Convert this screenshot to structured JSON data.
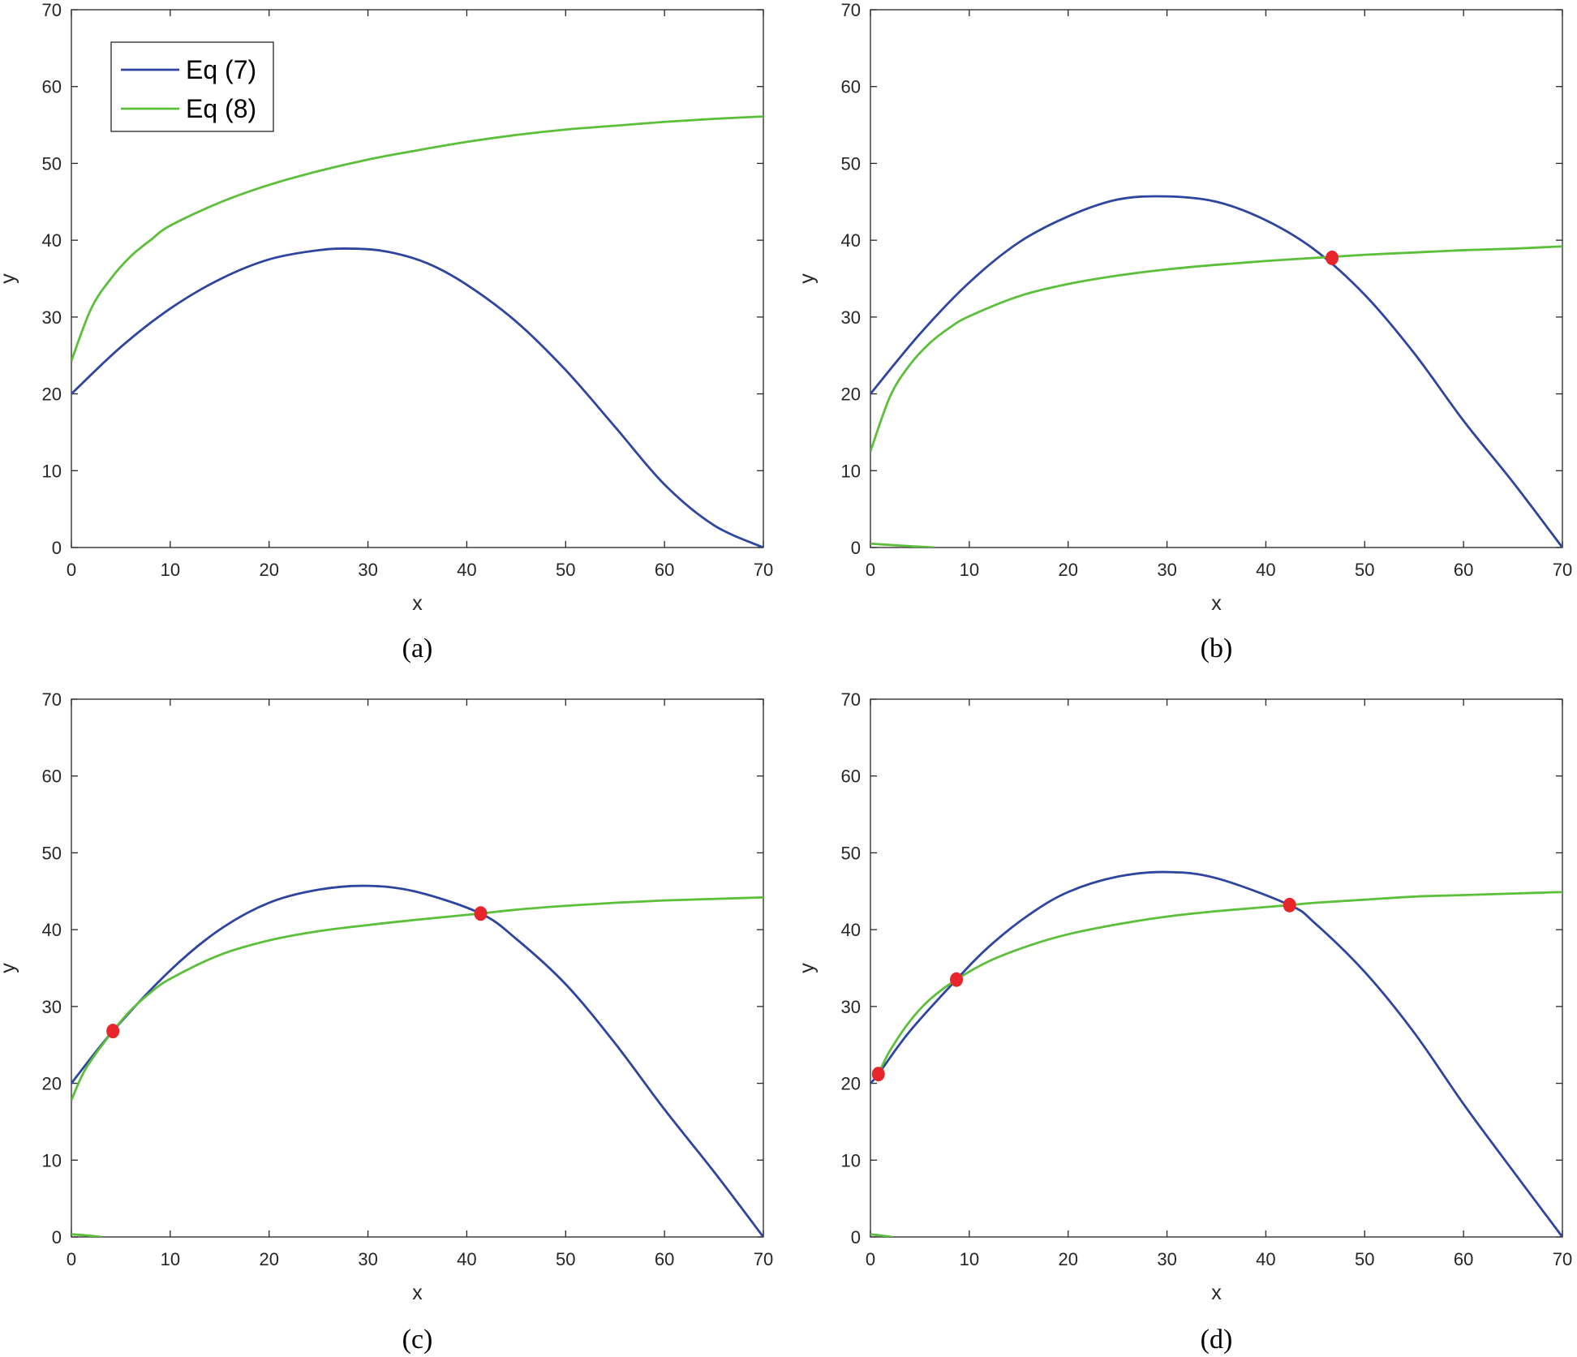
{
  "colors": {
    "eq7": "#2e45a0",
    "eq8": "#5cbf3a",
    "marker": "#e8252a",
    "axes": "#262626"
  },
  "chart_data": [
    {
      "type": "line",
      "caption": "(a)",
      "xlabel": "x",
      "ylabel": "y",
      "xlim": [
        0,
        70
      ],
      "ylim": [
        0,
        70
      ],
      "xticks": [
        "0",
        "10",
        "20",
        "30",
        "40",
        "50",
        "60",
        "70"
      ],
      "yticks": [
        "0",
        "10",
        "20",
        "30",
        "40",
        "50",
        "60",
        "70"
      ],
      "grid": false,
      "legend": {
        "position": "top-left",
        "entries": [
          "Eq (7)",
          "Eq (8)"
        ]
      },
      "series": [
        {
          "name": "Eq (7)",
          "color": "eq7",
          "x": [
            0,
            5,
            10,
            15,
            20,
            25,
            28.5,
            32,
            36,
            40,
            45,
            50,
            55,
            60,
            65,
            70
          ],
          "y": [
            20,
            26.1,
            31.1,
            34.9,
            37.5,
            38.7,
            38.9,
            38.5,
            37.0,
            34.2,
            29.4,
            23.1,
            15.7,
            8.2,
            2.9,
            0
          ]
        },
        {
          "name": "Eq (8)",
          "color": "eq8",
          "x": [
            0,
            2,
            4,
            6,
            8,
            10,
            15,
            20,
            25,
            30,
            35,
            40,
            45,
            50,
            55,
            60,
            65,
            70
          ],
          "y": [
            24.3,
            31.1,
            35.0,
            37.9,
            40.0,
            41.9,
            44.9,
            47.2,
            49.0,
            50.5,
            51.7,
            52.8,
            53.7,
            54.4,
            54.9,
            55.4,
            55.8,
            56.1
          ]
        }
      ],
      "extra_segments": [],
      "points": []
    },
    {
      "type": "line",
      "caption": "(b)",
      "xlabel": "x",
      "ylabel": "y",
      "xlim": [
        0,
        70
      ],
      "ylim": [
        0,
        70
      ],
      "xticks": [
        "0",
        "10",
        "20",
        "30",
        "40",
        "50",
        "60",
        "70"
      ],
      "yticks": [
        "0",
        "10",
        "20",
        "30",
        "40",
        "50",
        "60",
        "70"
      ],
      "grid": false,
      "series": [
        {
          "name": "",
          "color": "eq7",
          "x": [
            0,
            5,
            10,
            15,
            20,
            25,
            30,
            35,
            40,
            45,
            50,
            55,
            60,
            65,
            70
          ],
          "y": [
            20,
            27.8,
            34.5,
            39.7,
            43.1,
            45.3,
            45.7,
            45.0,
            42.6,
            38.7,
            32.9,
            25.3,
            16.5,
            8.5,
            0
          ]
        },
        {
          "name": "",
          "color": "eq8",
          "x": [
            0,
            2,
            4,
            6,
            8,
            10,
            15,
            20,
            25,
            30,
            35,
            40,
            45,
            50,
            55,
            60,
            65,
            70
          ],
          "y": [
            12.5,
            19.7,
            23.8,
            26.6,
            28.6,
            30.1,
            32.7,
            34.3,
            35.4,
            36.2,
            36.8,
            37.3,
            37.7,
            38.1,
            38.4,
            38.7,
            38.9,
            39.2
          ]
        }
      ],
      "extra_segments": [
        {
          "color": "eq8",
          "x": [
            0,
            3,
            6.5
          ],
          "y": [
            0.5,
            0.25,
            0
          ]
        }
      ],
      "points": [
        {
          "x": 46.7,
          "y": 37.7
        }
      ]
    },
    {
      "type": "line",
      "caption": "(c)",
      "xlabel": "x",
      "ylabel": "y",
      "xlim": [
        0,
        70
      ],
      "ylim": [
        0,
        70
      ],
      "xticks": [
        "0",
        "10",
        "20",
        "30",
        "40",
        "50",
        "60",
        "70"
      ],
      "yticks": [
        "0",
        "10",
        "20",
        "30",
        "40",
        "50",
        "60",
        "70"
      ],
      "grid": false,
      "series": [
        {
          "name": "",
          "color": "eq7",
          "x": [
            0,
            4.2,
            10,
            15,
            20,
            25,
            30,
            35,
            41.4,
            45,
            50,
            55,
            60,
            65,
            70
          ],
          "y": [
            20,
            26.8,
            34.7,
            40.0,
            43.5,
            45.2,
            45.7,
            44.9,
            42.1,
            38.8,
            32.9,
            25.2,
            16.6,
            8.5,
            0
          ]
        },
        {
          "name": "",
          "color": "eq8",
          "x": [
            0,
            1,
            2,
            4.2,
            6,
            8,
            10,
            15,
            20,
            25,
            30,
            35,
            41.4,
            45,
            50,
            55,
            60,
            65,
            70
          ],
          "y": [
            17.8,
            20.8,
            23.0,
            26.8,
            29.5,
            31.8,
            33.6,
            36.7,
            38.6,
            39.8,
            40.6,
            41.3,
            42.1,
            42.6,
            43.1,
            43.5,
            43.8,
            44.0,
            44.2
          ]
        }
      ],
      "extra_segments": [
        {
          "color": "eq8",
          "x": [
            0,
            1.5,
            3.1
          ],
          "y": [
            0.35,
            0.2,
            0
          ]
        }
      ],
      "points": [
        {
          "x": 4.2,
          "y": 26.8
        },
        {
          "x": 41.4,
          "y": 42.1
        }
      ]
    },
    {
      "type": "line",
      "caption": "(d)",
      "xlabel": "x",
      "ylabel": "y",
      "xlim": [
        0,
        70
      ],
      "ylim": [
        0,
        70
      ],
      "xticks": [
        "0",
        "10",
        "20",
        "30",
        "40",
        "50",
        "60",
        "70"
      ],
      "yticks": [
        "0",
        "10",
        "20",
        "30",
        "40",
        "50",
        "60",
        "70"
      ],
      "grid": false,
      "series": [
        {
          "name": "",
          "color": "eq7",
          "x": [
            0,
            0.8,
            4,
            8.7,
            12,
            16,
            20,
            25,
            30,
            35,
            42.4,
            45,
            50,
            55,
            60,
            65,
            70
          ],
          "y": [
            20,
            21.2,
            26.8,
            33.5,
            37.8,
            41.9,
            44.9,
            46.9,
            47.5,
            46.7,
            43.2,
            40.8,
            34.5,
            26.6,
            17.3,
            8.6,
            0
          ]
        },
        {
          "name": "",
          "color": "eq8",
          "x": [
            0.8,
            2,
            4,
            6,
            8.7,
            12,
            16,
            20,
            25,
            30,
            35,
            42.4,
            45,
            50,
            55,
            60,
            65,
            70
          ],
          "y": [
            21.2,
            24.3,
            28.1,
            30.9,
            33.5,
            35.9,
            37.9,
            39.4,
            40.7,
            41.7,
            42.4,
            43.2,
            43.5,
            43.9,
            44.3,
            44.5,
            44.7,
            44.9
          ]
        }
      ],
      "extra_segments": [
        {
          "color": "eq8",
          "x": [
            0,
            1.0,
            2.2
          ],
          "y": [
            0.35,
            0.2,
            0
          ]
        }
      ],
      "points": [
        {
          "x": 0.8,
          "y": 21.2
        },
        {
          "x": 8.7,
          "y": 33.5
        },
        {
          "x": 42.4,
          "y": 43.2
        }
      ]
    }
  ]
}
